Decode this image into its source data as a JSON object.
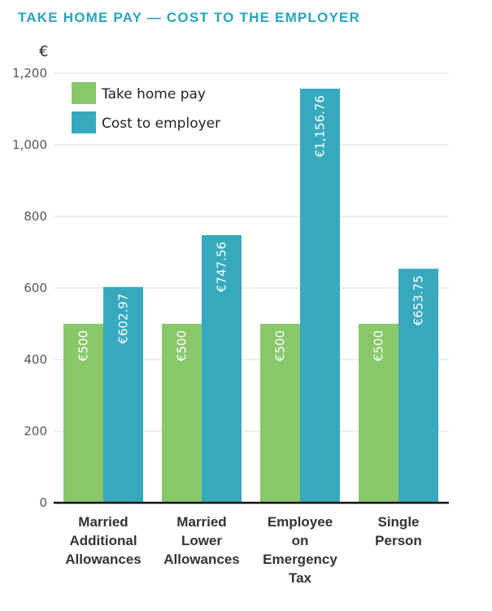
{
  "chart_data": {
    "type": "bar",
    "title": "TAKE HOME PAY — COST TO THE EMPLOYER",
    "ylabel": "€",
    "xlabel": "",
    "ylim": [
      0,
      1200
    ],
    "yticks": [
      0,
      200,
      400,
      600,
      800,
      1000,
      1200
    ],
    "ytick_labels": [
      "0",
      "200",
      "400",
      "600",
      "800",
      "1,000",
      "1,200"
    ],
    "grid": true,
    "legend_position": "top-left",
    "categories": [
      [
        "Married",
        "Additional",
        "Allowances"
      ],
      [
        "Married",
        "Lower",
        "Allowances"
      ],
      [
        "Employee",
        "on",
        "Emergency",
        "Tax"
      ],
      [
        "Single",
        "Person"
      ]
    ],
    "series": [
      {
        "name": "Take home pay",
        "color": "#88C76A",
        "values": [
          500,
          500,
          500,
          500
        ],
        "labels": [
          "€500",
          "€500",
          "€500",
          "€500"
        ]
      },
      {
        "name": "Cost to employer",
        "color": "#36A9BE",
        "values": [
          602.97,
          747.56,
          1156.76,
          653.75
        ],
        "labels": [
          "€602.97",
          "€747.56",
          "€1,156.76",
          "€653.75"
        ]
      }
    ]
  }
}
